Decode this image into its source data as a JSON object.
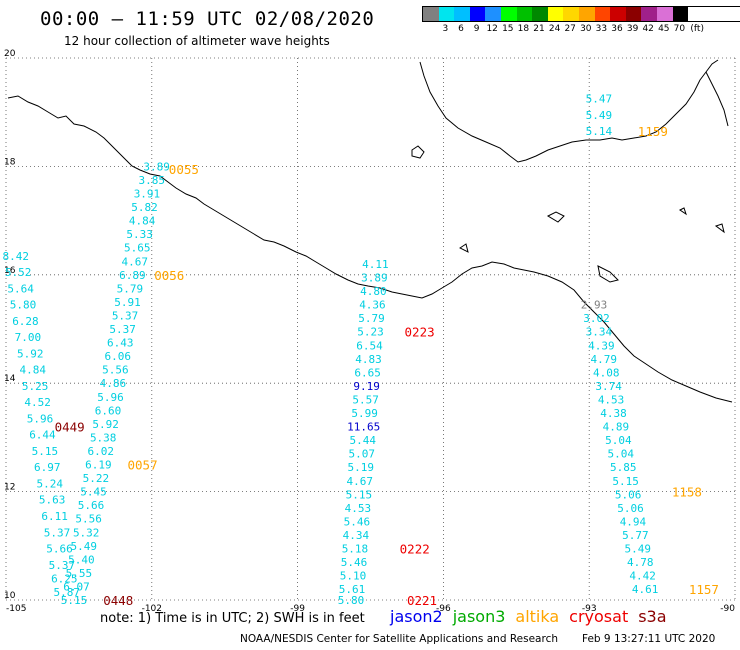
{
  "header": {
    "title": "00:00 – 11:59 UTC 02/08/2020",
    "subtitle": "12 hour collection of altimeter wave heights"
  },
  "legend": {
    "unit": "(ft)",
    "bins": [
      {
        "label": "",
        "color": "#808080"
      },
      {
        "label": "3",
        "color": "#00e5ee"
      },
      {
        "label": "6",
        "color": "#00bfff"
      },
      {
        "label": "9",
        "color": "#0000ff"
      },
      {
        "label": "12",
        "color": "#1e90ff"
      },
      {
        "label": "15",
        "color": "#00ff00"
      },
      {
        "label": "18",
        "color": "#00c000"
      },
      {
        "label": "21",
        "color": "#008800"
      },
      {
        "label": "24",
        "color": "#ffff00"
      },
      {
        "label": "27",
        "color": "#ffd700"
      },
      {
        "label": "30",
        "color": "#ffa500"
      },
      {
        "label": "33",
        "color": "#ff4500"
      },
      {
        "label": "36",
        "color": "#cc0000"
      },
      {
        "label": "39",
        "color": "#8b0000"
      },
      {
        "label": "42",
        "color": "#a0208a"
      },
      {
        "label": "45",
        "color": "#da70d6"
      },
      {
        "label": "70",
        "color": "#000000"
      }
    ]
  },
  "axes": {
    "lon_ticks": [
      "-105",
      "-102",
      "-99",
      "-96",
      "-93",
      "-90"
    ],
    "lat_ticks": [
      "10",
      "12",
      "14",
      "16",
      "18",
      "20"
    ]
  },
  "colors": {
    "wave": "#00cfe0",
    "wave_dark": "#0000cc",
    "grey": "#808080",
    "jason2": "#0000ee",
    "jason3": "#00aa00",
    "altika": "#ffa500",
    "cryosat": "#ee0000",
    "s3a": "#8b0000"
  },
  "chart_data": {
    "type": "scatter",
    "title": "00:00 – 11:59 UTC 02/08/2020",
    "subtitle": "12 hour collection of altimeter wave heights",
    "unit": "ft",
    "xlim": [
      -105,
      -90
    ],
    "ylim": [
      10,
      20
    ],
    "tracks": [
      {
        "name": "track-a-west",
        "color_key": "wave",
        "points": [
          {
            "lon": -104.8,
            "lat": 16.35,
            "v": "8.42"
          },
          {
            "lon": -104.75,
            "lat": 16.05,
            "v": "5.52"
          },
          {
            "lon": -104.7,
            "lat": 15.75,
            "v": "5.64"
          },
          {
            "lon": -104.65,
            "lat": 15.45,
            "v": "5.80"
          },
          {
            "lon": -104.6,
            "lat": 15.15,
            "v": "6.28"
          },
          {
            "lon": -104.55,
            "lat": 14.85,
            "v": "7.00"
          },
          {
            "lon": -104.5,
            "lat": 14.55,
            "v": "5.92"
          },
          {
            "lon": -104.45,
            "lat": 14.25,
            "v": "4.84"
          },
          {
            "lon": -104.4,
            "lat": 13.95,
            "v": "5.25"
          },
          {
            "lon": -104.35,
            "lat": 13.65,
            "v": "4.52"
          },
          {
            "lon": -104.3,
            "lat": 13.35,
            "v": "5.96"
          },
          {
            "lon": -104.25,
            "lat": 13.05,
            "v": "6.44"
          },
          {
            "lon": -104.2,
            "lat": 12.75,
            "v": "5.15"
          },
          {
            "lon": -104.15,
            "lat": 12.45,
            "v": "6.97"
          },
          {
            "lon": -104.1,
            "lat": 12.15,
            "v": "5.24"
          },
          {
            "lon": -104.05,
            "lat": 11.85,
            "v": "5.63"
          },
          {
            "lon": -104.0,
            "lat": 11.55,
            "v": "6.11"
          },
          {
            "lon": -103.95,
            "lat": 11.25,
            "v": "5.37"
          },
          {
            "lon": -103.9,
            "lat": 10.95,
            "v": "5.66"
          },
          {
            "lon": -103.85,
            "lat": 10.65,
            "v": "5.37"
          },
          {
            "lon": -103.8,
            "lat": 10.4,
            "v": "6.25"
          },
          {
            "lon": -103.75,
            "lat": 10.15,
            "v": "5.87"
          }
        ]
      },
      {
        "name": "track-b",
        "color_key": "wave",
        "points": [
          {
            "lon": -101.9,
            "lat": 18.0,
            "v": "3.89"
          },
          {
            "lon": -102.0,
            "lat": 17.75,
            "v": "3.85"
          },
          {
            "lon": -102.1,
            "lat": 17.5,
            "v": "3.91"
          },
          {
            "lon": -102.15,
            "lat": 17.25,
            "v": "5.82"
          },
          {
            "lon": -102.2,
            "lat": 17.0,
            "v": "4.84"
          },
          {
            "lon": -102.25,
            "lat": 16.75,
            "v": "5.33"
          },
          {
            "lon": -102.3,
            "lat": 16.5,
            "v": "5.65"
          },
          {
            "lon": -102.35,
            "lat": 16.25,
            "v": "4.67"
          },
          {
            "lon": -102.4,
            "lat": 16.0,
            "v": "6.89"
          },
          {
            "lon": -102.45,
            "lat": 15.75,
            "v": "5.79"
          },
          {
            "lon": -102.5,
            "lat": 15.5,
            "v": "5.91"
          },
          {
            "lon": -102.55,
            "lat": 15.25,
            "v": "5.37"
          },
          {
            "lon": -102.6,
            "lat": 15.0,
            "v": "5.37"
          },
          {
            "lon": -102.65,
            "lat": 14.75,
            "v": "6.43"
          },
          {
            "lon": -102.7,
            "lat": 14.5,
            "v": "6.06"
          },
          {
            "lon": -102.75,
            "lat": 14.25,
            "v": "5.56"
          },
          {
            "lon": -102.8,
            "lat": 14.0,
            "v": "4.86"
          },
          {
            "lon": -102.85,
            "lat": 13.75,
            "v": "5.96"
          },
          {
            "lon": -102.9,
            "lat": 13.5,
            "v": "6.60"
          },
          {
            "lon": -102.95,
            "lat": 13.25,
            "v": "5.92"
          },
          {
            "lon": -103.0,
            "lat": 13.0,
            "v": "5.38"
          },
          {
            "lon": -103.05,
            "lat": 12.75,
            "v": "6.02"
          },
          {
            "lon": -103.1,
            "lat": 12.5,
            "v": "6.19"
          },
          {
            "lon": -103.15,
            "lat": 12.25,
            "v": "5.22"
          },
          {
            "lon": -103.2,
            "lat": 12.0,
            "v": "5.45"
          },
          {
            "lon": -103.25,
            "lat": 11.75,
            "v": "5.66"
          },
          {
            "lon": -103.3,
            "lat": 11.5,
            "v": "5.56"
          },
          {
            "lon": -103.35,
            "lat": 11.25,
            "v": "5.32"
          },
          {
            "lon": -103.4,
            "lat": 11.0,
            "v": "5.49"
          },
          {
            "lon": -103.45,
            "lat": 10.75,
            "v": "5.40"
          },
          {
            "lon": -103.5,
            "lat": 10.5,
            "v": "5.55"
          },
          {
            "lon": -103.55,
            "lat": 10.25,
            "v": "6.07"
          },
          {
            "lon": -103.6,
            "lat": 10.0,
            "v": "5.15"
          }
        ]
      },
      {
        "name": "track-c",
        "color_key": "wave",
        "points": [
          {
            "lon": -97.4,
            "lat": 16.2,
            "v": "4.11"
          },
          {
            "lon": -97.42,
            "lat": 15.95,
            "v": "3.89"
          },
          {
            "lon": -97.44,
            "lat": 15.7,
            "v": "4.80"
          },
          {
            "lon": -97.46,
            "lat": 15.45,
            "v": "4.36"
          },
          {
            "lon": -97.48,
            "lat": 15.2,
            "v": "5.79"
          },
          {
            "lon": -97.5,
            "lat": 14.95,
            "v": "5.23"
          },
          {
            "lon": -97.52,
            "lat": 14.7,
            "v": "6.54"
          },
          {
            "lon": -97.54,
            "lat": 14.45,
            "v": "4.83"
          },
          {
            "lon": -97.56,
            "lat": 14.2,
            "v": "6.65"
          },
          {
            "lon": -97.58,
            "lat": 13.95,
            "v": "9.19",
            "c": "wave_dark"
          },
          {
            "lon": -97.6,
            "lat": 13.7,
            "v": "5.57"
          },
          {
            "lon": -97.62,
            "lat": 13.45,
            "v": "5.99"
          },
          {
            "lon": -97.64,
            "lat": 13.2,
            "v": "11.65",
            "c": "wave_dark"
          },
          {
            "lon": -97.66,
            "lat": 12.95,
            "v": "5.44"
          },
          {
            "lon": -97.68,
            "lat": 12.7,
            "v": "5.07"
          },
          {
            "lon": -97.7,
            "lat": 12.45,
            "v": "5.19"
          },
          {
            "lon": -97.72,
            "lat": 12.2,
            "v": "4.67"
          },
          {
            "lon": -97.74,
            "lat": 11.95,
            "v": "5.15"
          },
          {
            "lon": -97.76,
            "lat": 11.7,
            "v": "4.53"
          },
          {
            "lon": -97.78,
            "lat": 11.45,
            "v": "5.46"
          },
          {
            "lon": -97.8,
            "lat": 11.2,
            "v": "4.34"
          },
          {
            "lon": -97.82,
            "lat": 10.95,
            "v": "5.18"
          },
          {
            "lon": -97.84,
            "lat": 10.7,
            "v": "5.46"
          },
          {
            "lon": -97.86,
            "lat": 10.45,
            "v": "5.10"
          },
          {
            "lon": -97.88,
            "lat": 10.2,
            "v": "5.61"
          },
          {
            "lon": -97.9,
            "lat": 10.0,
            "v": "5.80"
          }
        ]
      },
      {
        "name": "track-d",
        "color_key": "wave",
        "points": [
          {
            "lon": -92.9,
            "lat": 15.45,
            "v": "2.93",
            "c": "grey"
          },
          {
            "lon": -92.85,
            "lat": 15.2,
            "v": "3.02"
          },
          {
            "lon": -92.8,
            "lat": 14.95,
            "v": "3.34"
          },
          {
            "lon": -92.75,
            "lat": 14.7,
            "v": "4.39"
          },
          {
            "lon": -92.7,
            "lat": 14.45,
            "v": "4.79"
          },
          {
            "lon": -92.65,
            "lat": 14.2,
            "v": "4.08"
          },
          {
            "lon": -92.6,
            "lat": 13.95,
            "v": "3.74"
          },
          {
            "lon": -92.55,
            "lat": 13.7,
            "v": "4.53"
          },
          {
            "lon": -92.5,
            "lat": 13.45,
            "v": "4.38"
          },
          {
            "lon": -92.45,
            "lat": 13.2,
            "v": "4.89"
          },
          {
            "lon": -92.4,
            "lat": 12.95,
            "v": "5.04"
          },
          {
            "lon": -92.35,
            "lat": 12.7,
            "v": "5.04"
          },
          {
            "lon": -92.3,
            "lat": 12.45,
            "v": "5.85"
          },
          {
            "lon": -92.25,
            "lat": 12.2,
            "v": "5.15"
          },
          {
            "lon": -92.2,
            "lat": 11.95,
            "v": "5.06"
          },
          {
            "lon": -92.15,
            "lat": 11.7,
            "v": "5.06"
          },
          {
            "lon": -92.1,
            "lat": 11.45,
            "v": "4.94"
          },
          {
            "lon": -92.05,
            "lat": 11.2,
            "v": "5.77"
          },
          {
            "lon": -92.0,
            "lat": 10.95,
            "v": "5.49"
          },
          {
            "lon": -91.95,
            "lat": 10.7,
            "v": "4.78"
          },
          {
            "lon": -91.9,
            "lat": 10.45,
            "v": "4.42"
          },
          {
            "lon": -91.85,
            "lat": 10.2,
            "v": "4.61"
          }
        ]
      },
      {
        "name": "track-e",
        "color_key": "wave",
        "points": [
          {
            "lon": -92.8,
            "lat": 19.25,
            "v": "5.47"
          },
          {
            "lon": -92.8,
            "lat": 18.95,
            "v": "5.49"
          },
          {
            "lon": -92.8,
            "lat": 18.65,
            "v": "5.14"
          }
        ]
      }
    ],
    "time_labels": [
      {
        "lon": -101.65,
        "lat": 17.95,
        "v": "0055",
        "color_key": "altika"
      },
      {
        "lon": -101.95,
        "lat": 16.0,
        "v": "0056",
        "color_key": "altika"
      },
      {
        "lon": -102.5,
        "lat": 12.5,
        "v": "0057",
        "color_key": "altika"
      },
      {
        "lon": -104.0,
        "lat": 13.2,
        "v": "0449",
        "color_key": "s3a"
      },
      {
        "lon": -103.0,
        "lat": 10.0,
        "v": "0448",
        "color_key": "s3a"
      },
      {
        "lon": -96.8,
        "lat": 14.95,
        "v": "0223",
        "color_key": "cryosat"
      },
      {
        "lon": -96.9,
        "lat": 10.95,
        "v": "0222",
        "color_key": "cryosat"
      },
      {
        "lon": -96.75,
        "lat": 10.0,
        "v": "0221",
        "color_key": "cryosat"
      },
      {
        "lon": -92.0,
        "lat": 18.65,
        "v": "1159",
        "color_key": "altika"
      },
      {
        "lon": -91.3,
        "lat": 12.0,
        "v": "1158",
        "color_key": "altika"
      },
      {
        "lon": -90.95,
        "lat": 10.2,
        "v": "1157",
        "color_key": "altika"
      }
    ]
  },
  "footer": {
    "note": "note:  1) Time is in UTC;  2) SWH is in feet",
    "satellites": [
      {
        "label": "jason2",
        "color_key": "jason2"
      },
      {
        "label": "jason3",
        "color_key": "jason3"
      },
      {
        "label": "altika",
        "color_key": "altika"
      },
      {
        "label": "cryosat",
        "color_key": "cryosat"
      },
      {
        "label": "s3a",
        "color_key": "s3a"
      }
    ],
    "credit": "NOAA/NESDIS Center for Satellite Applications and Research",
    "timestamp": "Feb  9 13:27:11 UTC 2020"
  }
}
